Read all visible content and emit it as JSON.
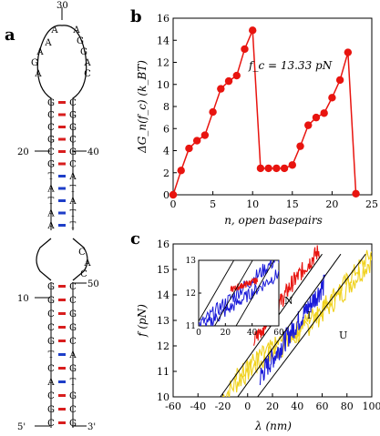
{
  "panels": {
    "a": {
      "letter": "a",
      "hairpin_index_labels": [
        "30",
        "20",
        "40",
        "10",
        "50",
        "5'",
        "3'"
      ],
      "loop_top_bases": [
        "A",
        "A",
        "A",
        "G",
        "A",
        "A",
        "G",
        "G",
        "A",
        "C"
      ],
      "stem_upper_left": [
        "G",
        "C",
        "C",
        "G",
        "C",
        "G",
        "T",
        "A",
        "T",
        "A",
        "A"
      ],
      "stem_upper_right": [
        "C",
        "G",
        "G",
        "C",
        "G",
        "C",
        "A",
        "T",
        "A",
        "T",
        "T"
      ],
      "loop_mid_bases": [
        "C",
        "A",
        "C"
      ],
      "stem_lower_left": [
        "G",
        "G",
        "C",
        "C",
        "G",
        "T",
        "C",
        "A",
        "C",
        "G",
        "C"
      ],
      "stem_lower_right": [
        "C",
        "C",
        "G",
        "G",
        "C",
        "A",
        "G",
        "T",
        "G",
        "C",
        "G"
      ]
    },
    "b": {
      "letter": "b",
      "annotation": "f_c = 13.33 pN"
    },
    "c": {
      "letter": "c",
      "state_labels": [
        "N",
        "I",
        "U"
      ]
    }
  },
  "chart_data": [
    {
      "panel": "b",
      "type": "line",
      "xlabel": "n, open basepairs",
      "ylabel": "ΔG_n(f_c) (k_BT)",
      "xlim": [
        0,
        25
      ],
      "ylim": [
        0,
        16
      ],
      "xticks": [
        "0",
        "5",
        "10",
        "15",
        "20",
        "25"
      ],
      "yticks": [
        "0",
        "2",
        "4",
        "6",
        "8",
        "10",
        "12",
        "14",
        "16"
      ],
      "color": "#e8140f",
      "series": [
        {
          "x": [
            0,
            1,
            2,
            3,
            4,
            5,
            6,
            7,
            8,
            9,
            10,
            11,
            12,
            13,
            14,
            15,
            16,
            17,
            18,
            19,
            20,
            21,
            22,
            23
          ],
          "y": [
            0,
            2.2,
            4.2,
            4.9,
            5.4,
            7.5,
            9.6,
            10.3,
            10.8,
            13.2,
            14.9,
            2.4,
            2.4,
            2.4,
            2.4,
            2.7,
            4.4,
            6.3,
            7.0,
            7.4,
            8.8,
            10.4,
            12.9,
            0.1
          ]
        }
      ]
    },
    {
      "panel": "c",
      "type": "line",
      "xlabel": "λ (nm)",
      "ylabel": "f (pN)",
      "xlim": [
        -60,
        100
      ],
      "ylim": [
        10,
        16
      ],
      "xticks": [
        "-60",
        "-40",
        "-20",
        "0",
        "20",
        "40",
        "60",
        "80",
        "100"
      ],
      "yticks": [
        "10",
        "11",
        "12",
        "13",
        "14",
        "15",
        "16"
      ],
      "series": [
        {
          "color": "#e8140f",
          "x": [
            5,
            15,
            25,
            35,
            45,
            55
          ],
          "y": [
            12.2,
            12.9,
            13.6,
            14.4,
            15.0,
            15.6
          ]
        },
        {
          "color": "#1a1ad9",
          "x": [
            10,
            20,
            30,
            40,
            50,
            60
          ],
          "y": [
            10.8,
            11.5,
            12.2,
            12.9,
            13.6,
            14.3
          ]
        },
        {
          "color": "#f0d21e",
          "x": [
            -20,
            0,
            20,
            40,
            60,
            80,
            100
          ],
          "y": [
            10.0,
            11.0,
            11.7,
            12.4,
            13.3,
            14.3,
            15.4
          ]
        }
      ],
      "reference_lines": [
        {
          "label": "N",
          "x": [
            -22,
            60
          ],
          "y": [
            10.0,
            15.6
          ]
        },
        {
          "label": "I",
          "x": [
            -8,
            75
          ],
          "y": [
            10.0,
            15.6
          ]
        },
        {
          "label": "U",
          "x": [
            8,
            95
          ],
          "y": [
            10.0,
            15.6
          ]
        }
      ],
      "inset": {
        "xlim": [
          0,
          60
        ],
        "ylim": [
          11,
          13
        ],
        "xticks": [
          "0",
          "20",
          "40",
          "60"
        ],
        "yticks": [
          "11",
          "12",
          "13"
        ]
      }
    }
  ]
}
